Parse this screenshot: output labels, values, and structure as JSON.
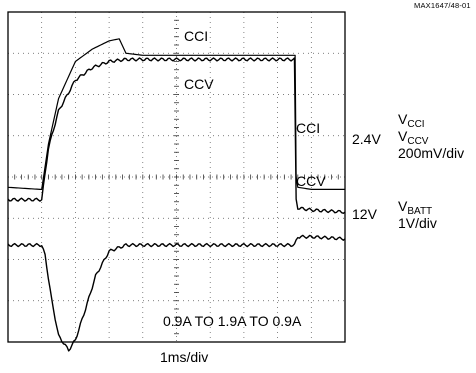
{
  "figure_id": "MAX1647/48-01",
  "chart_data": {
    "type": "line",
    "title": "",
    "xlabel": "1ms/div",
    "ylabel": "",
    "grid": true,
    "divisions": {
      "x": 10,
      "y": 8
    },
    "x_unit": "ms",
    "xlim": [
      0,
      10
    ],
    "trace_labels": {
      "cci_upper": "CCI",
      "ccv_upper": "CCV",
      "cci_lower": "CCI",
      "ccv_lower": "CCV",
      "annotation": "0.9A TO 1.9A TO 0.9A"
    },
    "channels": [
      {
        "level": "2.4V",
        "signals": [
          {
            "base": "V",
            "sub": "CCI"
          },
          {
            "base": "V",
            "sub": "CCV"
          }
        ],
        "scale": "200mV/div"
      },
      {
        "level": "12V",
        "signals": [
          {
            "base": "V",
            "sub": "BATT"
          }
        ],
        "scale": "1V/div"
      }
    ],
    "series": [
      {
        "name": "CCI",
        "unit": "div",
        "x": [
          0,
          0.95,
          1.0,
          1.2,
          1.5,
          2.0,
          2.5,
          3.0,
          3.3,
          3.5,
          4.0,
          5.0,
          7.0,
          8.0,
          8.52,
          8.55,
          8.6,
          9.0,
          10.0
        ],
        "values": [
          -0.25,
          -0.3,
          -0.3,
          0.8,
          1.9,
          2.8,
          3.1,
          3.3,
          3.35,
          3.0,
          2.95,
          2.95,
          2.95,
          2.95,
          2.95,
          0.0,
          -0.25,
          -0.3,
          -0.3
        ]
      },
      {
        "name": "CCV",
        "unit": "div",
        "x": [
          0,
          0.95,
          1.0,
          1.2,
          1.5,
          2.0,
          2.5,
          3.0,
          3.5,
          4.0,
          5.0,
          7.0,
          8.5,
          8.55,
          8.6,
          9.0,
          10.0
        ],
        "values": [
          -0.55,
          -0.55,
          -0.55,
          0.7,
          1.6,
          2.35,
          2.65,
          2.8,
          2.85,
          2.85,
          2.85,
          2.85,
          2.85,
          -0.55,
          -0.75,
          -0.8,
          -0.85
        ]
      },
      {
        "name": "VBATT",
        "unit": "div",
        "x": [
          0,
          1.0,
          1.1,
          1.3,
          1.5,
          1.8,
          2.0,
          2.3,
          2.6,
          3.0,
          3.5,
          4.0,
          5.0,
          7.0,
          8.5,
          8.6,
          9.0,
          10.0
        ],
        "values": [
          -1.65,
          -1.65,
          -1.9,
          -3.0,
          -3.85,
          -4.2,
          -3.95,
          -3.2,
          -2.4,
          -1.8,
          -1.65,
          -1.65,
          -1.65,
          -1.65,
          -1.65,
          -1.45,
          -1.45,
          -1.5
        ]
      }
    ]
  }
}
